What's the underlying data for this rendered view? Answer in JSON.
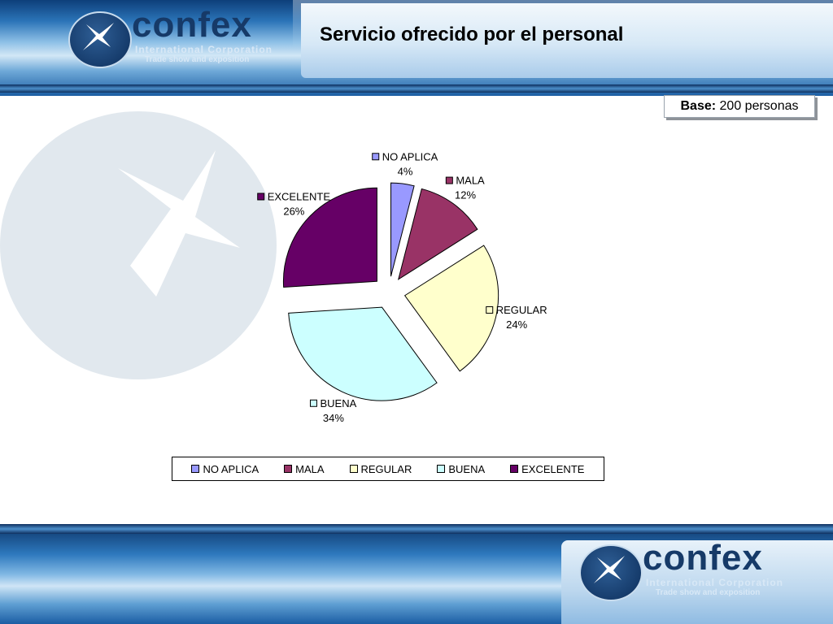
{
  "brand": {
    "name": "confex",
    "tagline": "International Corporation",
    "subtagline": "Trade show and exposition"
  },
  "page": {
    "title": "Servicio ofrecido por el personal"
  },
  "base": {
    "label": "Base:",
    "value": "200 personas"
  },
  "chart_data": {
    "type": "pie",
    "exploded": true,
    "categories": [
      "NO APLICA",
      "MALA",
      "REGULAR",
      "BUENA",
      "EXCELENTE"
    ],
    "values": [
      4,
      12,
      24,
      34,
      26
    ],
    "value_labels": [
      "4%",
      "12%",
      "24%",
      "34%",
      "26%"
    ],
    "colors": [
      "#9999ff",
      "#993366",
      "#ffffcc",
      "#ccffff",
      "#660066"
    ],
    "legend_position": "bottom"
  }
}
